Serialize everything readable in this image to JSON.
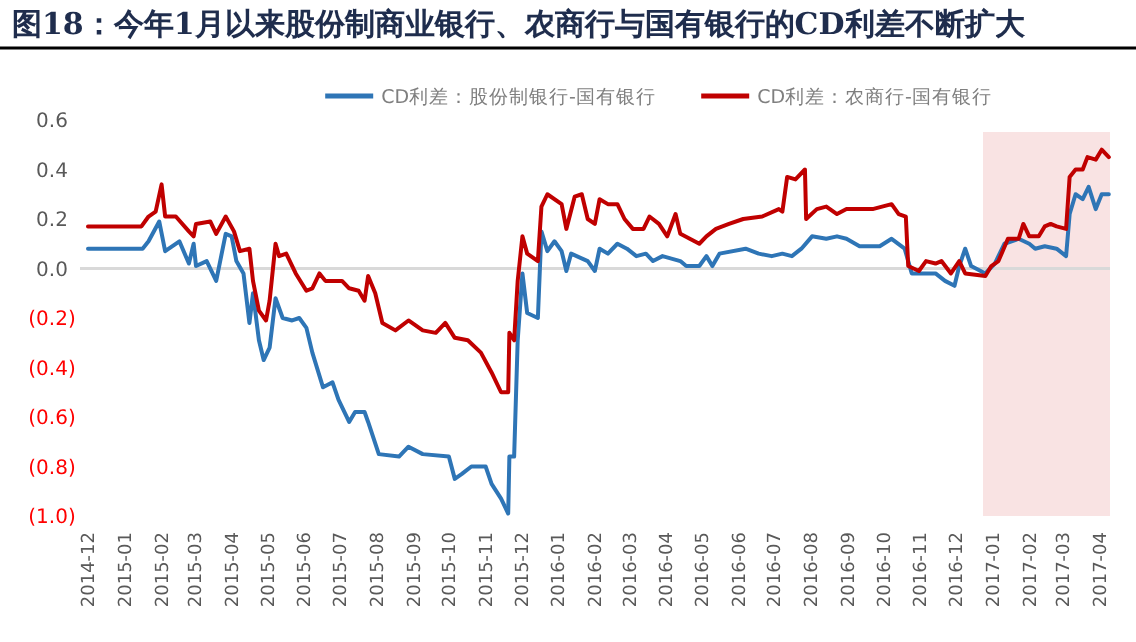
{
  "chart_data": {
    "type": "line",
    "title": "图18：今年1月以来股份制商业银行、农商行与国有银行的CD利差不断扩大",
    "legend": "top",
    "line_style": "solid",
    "marker": "none",
    "xlim": [
      "2014-12-01",
      "2017-04-10"
    ],
    "xticks": [
      "2014-12",
      "2015-01",
      "2015-02",
      "2015-03",
      "2015-04",
      "2015-05",
      "2015-06",
      "2015-07",
      "2015-08",
      "2015-09",
      "2015-10",
      "2015-11",
      "2015-12",
      "2016-01",
      "2016-02",
      "2016-03",
      "2016-04",
      "2016-05",
      "2016-06",
      "2016-07",
      "2016-08",
      "2016-09",
      "2016-10",
      "2016-11",
      "2016-12",
      "2017-01",
      "2017-02",
      "2017-03",
      "2017-04"
    ],
    "ylim": [
      -1.0,
      0.6
    ],
    "yticks": [
      0.6,
      0.4,
      0.2,
      {
        "value": 0,
        "label": "0.0"
      },
      {
        "value": -0.2,
        "label": "(0.2)"
      },
      {
        "value": -0.4,
        "label": "(0.4)"
      },
      {
        "value": -0.6,
        "label": "(0.6)"
      },
      {
        "value": -0.8,
        "label": "(0.8)"
      },
      {
        "value": -1.0,
        "label": "(1.0)"
      }
    ],
    "bands": [
      {
        "axis": "x",
        "from": "2016-12-24",
        "to": "2017-04-10",
        "color": "#f8dcdc"
      }
    ],
    "series": [
      {
        "name": "CD利差：股份制银行-国有银行",
        "color": "#2e75b6",
        "x": [
          "2014-12-01",
          "2015-01-16",
          "2015-01-21",
          "2015-01-30",
          "2015-02-04",
          "2015-02-16",
          "2015-02-24",
          "2015-02-28",
          "2015-03-02",
          "2015-03-11",
          "2015-03-19",
          "2015-03-27",
          "2015-04-01",
          "2015-04-05",
          "2015-04-11",
          "2015-04-16",
          "2015-04-19",
          "2015-04-24",
          "2015-04-28",
          "2015-05-03",
          "2015-05-08",
          "2015-05-14",
          "2015-05-22",
          "2015-05-28",
          "2015-06-03",
          "2015-06-08",
          "2015-06-17",
          "2015-06-25",
          "2015-06-30",
          "2015-07-09",
          "2015-07-14",
          "2015-07-22",
          "2015-07-25",
          "2015-08-03",
          "2015-08-20",
          "2015-08-28",
          "2015-09-09",
          "2015-10-01",
          "2015-10-06",
          "2015-10-12",
          "2015-10-20",
          "2015-11-01",
          "2015-11-06",
          "2015-11-14",
          "2015-11-20",
          "2015-11-21",
          "2015-11-25",
          "2015-11-28",
          "2015-12-02",
          "2015-12-06",
          "2015-12-15",
          "2015-12-18",
          "2015-12-23",
          "2015-12-29",
          "2016-01-04",
          "2016-01-08",
          "2016-01-12",
          "2016-01-26",
          "2016-02-01",
          "2016-02-05",
          "2016-02-12",
          "2016-02-20",
          "2016-02-28",
          "2016-03-07",
          "2016-03-15",
          "2016-03-21",
          "2016-03-29",
          "2016-04-13",
          "2016-04-18",
          "2016-04-29",
          "2016-05-05",
          "2016-05-10",
          "2016-05-16",
          "2016-06-07",
          "2016-06-18",
          "2016-06-29",
          "2016-07-08",
          "2016-07-16",
          "2016-07-24",
          "2016-08-02",
          "2016-08-14",
          "2016-08-23",
          "2016-08-31",
          "2016-09-11",
          "2016-09-28",
          "2016-10-08",
          "2016-10-19",
          "2016-10-25",
          "2016-11-14",
          "2016-11-22",
          "2016-11-30",
          "2016-12-04",
          "2016-12-09",
          "2016-12-14",
          "2016-12-26",
          "2017-01-03",
          "2017-01-11",
          "2017-01-23",
          "2017-02-01",
          "2017-02-06",
          "2017-02-14",
          "2017-02-24",
          "2017-03-04",
          "2017-03-07",
          "2017-03-12",
          "2017-03-18",
          "2017-03-23",
          "2017-03-29",
          "2017-04-03",
          "2017-04-09"
        ],
        "values": [
          0.08,
          0.08,
          0.11,
          0.19,
          0.07,
          0.11,
          0.02,
          0.1,
          0.01,
          0.03,
          -0.05,
          0.14,
          0.13,
          0.03,
          -0.02,
          -0.22,
          -0.1,
          -0.29,
          -0.37,
          -0.32,
          -0.12,
          -0.2,
          -0.21,
          -0.2,
          -0.24,
          -0.34,
          -0.48,
          -0.46,
          -0.53,
          -0.62,
          -0.58,
          -0.58,
          -0.62,
          -0.75,
          -0.76,
          -0.72,
          -0.75,
          -0.76,
          -0.85,
          -0.83,
          -0.8,
          -0.8,
          -0.87,
          -0.93,
          -0.99,
          -0.76,
          -0.76,
          -0.29,
          -0.02,
          -0.18,
          -0.2,
          0.15,
          0.07,
          0.11,
          0.07,
          -0.01,
          0.06,
          0.03,
          -0.01,
          0.08,
          0.06,
          0.1,
          0.08,
          0.05,
          0.06,
          0.03,
          0.05,
          0.03,
          0.01,
          0.01,
          0.05,
          0.01,
          0.06,
          0.08,
          0.06,
          0.05,
          0.06,
          0.05,
          0.08,
          0.13,
          0.12,
          0.13,
          0.12,
          0.09,
          0.09,
          0.12,
          0.08,
          -0.02,
          -0.02,
          -0.05,
          -0.07,
          0.01,
          0.08,
          0.01,
          -0.02,
          0.02,
          0.1,
          0.12,
          0.1,
          0.08,
          0.09,
          0.08,
          0.05,
          0.22,
          0.3,
          0.28,
          0.33,
          0.24,
          0.3,
          0.3
        ]
      },
      {
        "name": "CD利差：农商行-国有银行",
        "color": "#c00000",
        "x": [
          "2014-12-01",
          "2015-01-15",
          "2015-01-21",
          "2015-01-27",
          "2015-02-01",
          "2015-02-04",
          "2015-02-13",
          "2015-02-24",
          "2015-02-28",
          "2015-03-02",
          "2015-03-14",
          "2015-03-19",
          "2015-03-27",
          "2015-04-03",
          "2015-04-08",
          "2015-04-16",
          "2015-04-19",
          "2015-04-24",
          "2015-04-30",
          "2015-05-03",
          "2015-05-08",
          "2015-05-11",
          "2015-05-17",
          "2015-05-25",
          "2015-06-03",
          "2015-06-08",
          "2015-06-14",
          "2015-06-19",
          "2015-07-03",
          "2015-07-09",
          "2015-07-17",
          "2015-07-22",
          "2015-07-25",
          "2015-07-31",
          "2015-08-06",
          "2015-08-17",
          "2015-08-28",
          "2015-09-09",
          "2015-09-20",
          "2015-09-28",
          "2015-10-06",
          "2015-10-17",
          "2015-10-28",
          "2015-11-06",
          "2015-11-14",
          "2015-11-20",
          "2015-11-21",
          "2015-11-25",
          "2015-11-28",
          "2015-12-02",
          "2015-12-06",
          "2015-12-15",
          "2015-12-18",
          "2015-12-23",
          "2016-01-04",
          "2016-01-08",
          "2016-01-15",
          "2016-01-21",
          "2016-01-26",
          "2016-02-01",
          "2016-02-05",
          "2016-02-12",
          "2016-02-20",
          "2016-02-26",
          "2016-03-04",
          "2016-03-13",
          "2016-03-18",
          "2016-03-26",
          "2016-04-02",
          "2016-04-09",
          "2016-04-13",
          "2016-04-21",
          "2016-04-29",
          "2016-05-05",
          "2016-05-13",
          "2016-05-24",
          "2016-06-05",
          "2016-06-21",
          "2016-07-05",
          "2016-07-08",
          "2016-07-12",
          "2016-07-19",
          "2016-07-27",
          "2016-07-28",
          "2016-08-06",
          "2016-08-14",
          "2016-08-23",
          "2016-08-31",
          "2016-09-22",
          "2016-10-08",
          "2016-10-14",
          "2016-10-20",
          "2016-10-22",
          "2016-10-31",
          "2016-11-06",
          "2016-11-14",
          "2016-11-19",
          "2016-11-27",
          "2016-12-04",
          "2016-12-09",
          "2016-12-26",
          "2016-12-31",
          "2017-01-06",
          "2017-01-14",
          "2017-01-23",
          "2017-01-27",
          "2017-02-01",
          "2017-02-09",
          "2017-02-14",
          "2017-02-19",
          "2017-02-24",
          "2017-03-04",
          "2017-03-07",
          "2017-03-12",
          "2017-03-18",
          "2017-03-22",
          "2017-03-29",
          "2017-04-03",
          "2017-04-09"
        ],
        "values": [
          0.17,
          0.17,
          0.21,
          0.23,
          0.34,
          0.21,
          0.21,
          0.15,
          0.13,
          0.18,
          0.19,
          0.14,
          0.21,
          0.15,
          0.07,
          0.08,
          -0.05,
          -0.17,
          -0.21,
          -0.13,
          0.1,
          0.05,
          0.06,
          -0.02,
          -0.09,
          -0.08,
          -0.02,
          -0.05,
          -0.05,
          -0.08,
          -0.09,
          -0.13,
          -0.03,
          -0.1,
          -0.22,
          -0.25,
          -0.21,
          -0.25,
          -0.26,
          -0.22,
          -0.28,
          -0.29,
          -0.34,
          -0.42,
          -0.5,
          -0.5,
          -0.26,
          -0.29,
          -0.05,
          0.13,
          0.06,
          0.03,
          0.25,
          0.3,
          0.26,
          0.16,
          0.29,
          0.3,
          0.2,
          0.18,
          0.28,
          0.26,
          0.26,
          0.2,
          0.16,
          0.16,
          0.21,
          0.18,
          0.13,
          0.22,
          0.14,
          0.12,
          0.1,
          0.13,
          0.16,
          0.18,
          0.2,
          0.21,
          0.24,
          0.23,
          0.37,
          0.36,
          0.4,
          0.2,
          0.24,
          0.25,
          0.22,
          0.24,
          0.24,
          0.26,
          0.22,
          0.21,
          0.01,
          -0.01,
          0.03,
          0.02,
          0.03,
          -0.02,
          0.03,
          -0.02,
          -0.03,
          0.01,
          0.03,
          0.12,
          0.12,
          0.18,
          0.13,
          0.13,
          0.17,
          0.18,
          0.17,
          0.16,
          0.37,
          0.4,
          0.4,
          0.45,
          0.44,
          0.48,
          0.45
        ]
      }
    ]
  }
}
